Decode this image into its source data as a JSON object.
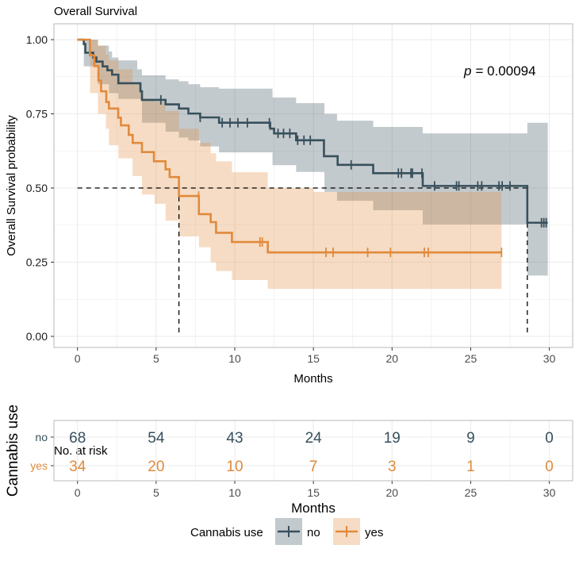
{
  "chart_data": {
    "type": "line",
    "subtype": "kaplan-meier",
    "title": "Overall Survival",
    "xlabel": "Months",
    "ylabel": "Overall Survival probability",
    "xlim": [
      0,
      30
    ],
    "ylim": [
      0,
      1
    ],
    "x_ticks": [
      "0",
      "5",
      "10",
      "15",
      "20",
      "25",
      "30"
    ],
    "y_ticks": [
      "0.00",
      "0.25",
      "0.50",
      "0.75",
      "1.00"
    ],
    "grid": true,
    "p_label": "p",
    "p_value": "= 0.00094",
    "median_line": 0.5,
    "medians": [
      6.45,
      28.6
    ],
    "series": [
      {
        "name": "no",
        "color": "#37505c",
        "steps": [
          [
            0,
            1
          ],
          [
            0.4,
            0.985
          ],
          [
            0.5,
            0.956
          ],
          [
            1.0,
            0.94
          ],
          [
            1.2,
            0.926
          ],
          [
            1.6,
            0.91
          ],
          [
            1.9,
            0.897
          ],
          [
            2.2,
            0.882
          ],
          [
            2.6,
            0.853
          ],
          [
            4.0,
            0.826
          ],
          [
            4.1,
            0.797
          ],
          [
            5.6,
            0.782
          ],
          [
            6.45,
            0.768
          ],
          [
            7.05,
            0.751
          ],
          [
            7.8,
            0.738
          ],
          [
            9.0,
            0.72
          ],
          [
            12.25,
            0.7
          ],
          [
            12.5,
            0.684
          ],
          [
            13.9,
            0.661
          ],
          [
            15.67,
            0.607
          ],
          [
            16.54,
            0.578
          ],
          [
            18.8,
            0.55
          ],
          [
            21.95,
            0.507
          ],
          [
            28.6,
            0.383
          ],
          [
            29.9,
            0.383
          ]
        ],
        "censored": [
          5.3,
          7.8,
          9.2,
          9.7,
          10.2,
          10.8,
          12.2,
          12.75,
          13.1,
          13.5,
          14.0,
          14.4,
          14.8,
          17.4,
          20.4,
          20.6,
          21.2,
          21.3,
          21.9,
          22.7,
          24.1,
          24.25,
          25.45,
          25.7,
          26.8,
          27.0,
          27.5,
          29.5,
          29.65,
          29.8
        ],
        "ci": [
          [
            0,
            1,
            1
          ],
          [
            0.4,
            0.91,
            1
          ],
          [
            1.3,
            0.85,
            0.98
          ],
          [
            2.0,
            0.82,
            0.96
          ],
          [
            2.2,
            0.82,
            0.94
          ],
          [
            2.6,
            0.8,
            0.93
          ],
          [
            3.8,
            0.8,
            0.9
          ],
          [
            4.1,
            0.72,
            0.88
          ],
          [
            5.6,
            0.69,
            0.866
          ],
          [
            6.45,
            0.67,
            0.86
          ],
          [
            7.05,
            0.66,
            0.85
          ],
          [
            7.8,
            0.64,
            0.84
          ],
          [
            9.0,
            0.62,
            0.835
          ],
          [
            12.4,
            0.577,
            0.805
          ],
          [
            13.9,
            0.554,
            0.786
          ],
          [
            15.7,
            0.487,
            0.75
          ],
          [
            16.5,
            0.457,
            0.727
          ],
          [
            18.8,
            0.425,
            0.706
          ],
          [
            21.95,
            0.377,
            0.684
          ],
          [
            28.6,
            0.205,
            0.72
          ],
          [
            29.9,
            0.205,
            0.72
          ]
        ]
      },
      {
        "name": "yes",
        "color": "#e08a3c",
        "steps": [
          [
            0,
            1
          ],
          [
            0.79,
            0.947
          ],
          [
            1.07,
            0.911
          ],
          [
            1.33,
            0.862
          ],
          [
            1.5,
            0.826
          ],
          [
            1.83,
            0.79
          ],
          [
            2.0,
            0.768
          ],
          [
            2.59,
            0.737
          ],
          [
            2.76,
            0.711
          ],
          [
            3.26,
            0.679
          ],
          [
            3.51,
            0.652
          ],
          [
            4.1,
            0.621
          ],
          [
            4.86,
            0.59
          ],
          [
            5.6,
            0.563
          ],
          [
            5.86,
            0.537
          ],
          [
            6.45,
            0.473
          ],
          [
            7.72,
            0.412
          ],
          [
            8.47,
            0.385
          ],
          [
            8.81,
            0.349
          ],
          [
            9.82,
            0.318
          ],
          [
            12.1,
            0.283
          ],
          [
            26.96,
            0.283
          ]
        ],
        "censored": [
          7.7,
          11.6,
          11.75,
          15.8,
          16.25,
          18.45,
          19.9,
          22.05,
          22.3,
          26.96
        ],
        "ci": [
          [
            0,
            1,
            1
          ],
          [
            0.8,
            0.82,
            1.0
          ],
          [
            1.3,
            0.75,
            0.98
          ],
          [
            1.8,
            0.7,
            0.95
          ],
          [
            2.0,
            0.644,
            0.93
          ],
          [
            2.6,
            0.6,
            0.9
          ],
          [
            3.5,
            0.54,
            0.85
          ],
          [
            4.1,
            0.478,
            0.8
          ],
          [
            4.9,
            0.447,
            0.79
          ],
          [
            5.6,
            0.39,
            0.76
          ],
          [
            6.45,
            0.337,
            0.7
          ],
          [
            7.72,
            0.3,
            0.652
          ],
          [
            8.47,
            0.25,
            0.617
          ],
          [
            8.81,
            0.22,
            0.59
          ],
          [
            9.82,
            0.19,
            0.553
          ],
          [
            12.1,
            0.16,
            0.5
          ],
          [
            15.0,
            0.16,
            0.487
          ],
          [
            26.96,
            0.16,
            0.487
          ]
        ]
      }
    ]
  },
  "risk_table": {
    "title": "No. at risk",
    "ylabel": "Cannabis use",
    "xlabel": "Months",
    "times": [
      0,
      5,
      10,
      15,
      20,
      25,
      30
    ],
    "x_ticks": [
      "0",
      "5",
      "10",
      "15",
      "20",
      "25",
      "30"
    ],
    "rows": [
      {
        "label": "no",
        "color": "#37505c",
        "values": [
          "68",
          "54",
          "43",
          "24",
          "19",
          "9",
          "0"
        ]
      },
      {
        "label": "yes",
        "color": "#e08a3c",
        "values": [
          "34",
          "20",
          "10",
          "7",
          "3",
          "1",
          "0"
        ]
      }
    ]
  },
  "legend": {
    "title": "Cannabis use",
    "items": [
      {
        "label": "no",
        "color": "#37505c"
      },
      {
        "label": "yes",
        "color": "#e08a3c"
      }
    ]
  }
}
